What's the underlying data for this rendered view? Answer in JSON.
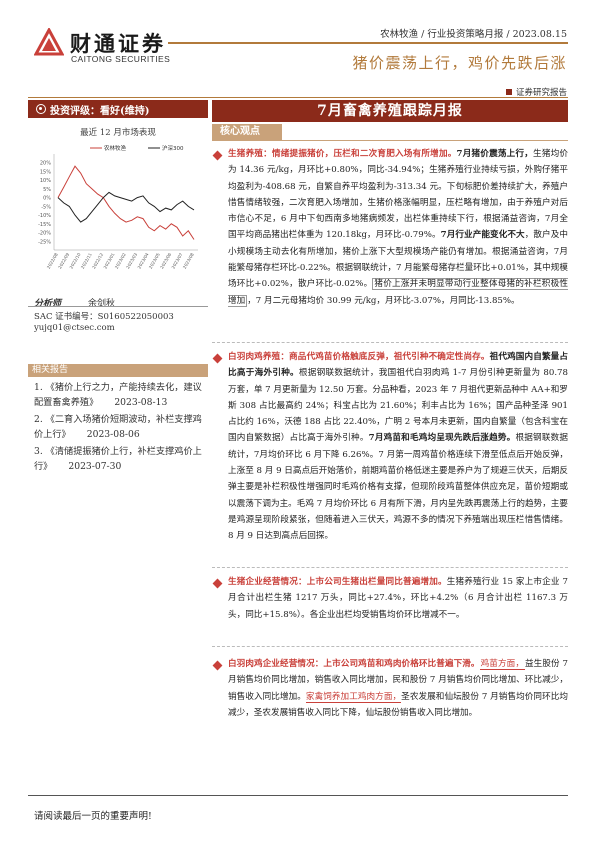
{
  "header": {
    "company_cn": "财通证券",
    "company_en": "CAITONG SECURITIES",
    "meta": "农林牧渔 / 行业投资策略月报 / 2023.08.15",
    "subtitle": "猪价震荡上行，鸡价先跌后涨",
    "report_tag": "证券研究报告"
  },
  "sidebar": {
    "rating": "投资评级：看好(维持)",
    "chart_caption": "最近 12 月市场表现",
    "analyst_label": "分析师",
    "analyst_name": "余剑秋",
    "sac": "SAC 证书编号：S0160522050003",
    "email": "yujq01@ctsec.com",
    "related_title": "相关报告",
    "related": [
      {
        "text": "1. 《猪价上行之力，产能持续去化，建议配置畜禽养殖》",
        "date": "2023-08-13"
      },
      {
        "text": "2. 《二育入场猪价短期波动，补栏支撑鸡价上行》",
        "date": "2023-08-06"
      },
      {
        "text": "3. 《清储提振猪价上行，补栏支撑鸡价上行》",
        "date": "2023-07-30"
      }
    ]
  },
  "chart_data": {
    "type": "line",
    "title": "最近 12 月市场表现",
    "ylim": [
      -0.3,
      0.25
    ],
    "y_ticks": [
      "20%",
      "15%",
      "10%",
      "5%",
      "0%",
      "-5%",
      "-10%",
      "-15%",
      "-20%",
      "-25%"
    ],
    "x_ticks": [
      "2022/08",
      "2022/09",
      "2022/10",
      "2022/11",
      "2022/12",
      "2023/01",
      "2023/02",
      "2023/03",
      "2023/04",
      "2023/05",
      "2023/06",
      "2023/07",
      "2023/08"
    ],
    "series": [
      {
        "name": "农林牧渔",
        "color": "#c9403a",
        "values": [
          0.0,
          0.06,
          0.12,
          0.18,
          0.14,
          0.08,
          0.05,
          0.02,
          0.0,
          -0.05,
          -0.09,
          -0.12,
          -0.14,
          -0.13,
          -0.11,
          -0.12,
          -0.17,
          -0.19,
          -0.16,
          -0.18,
          -0.15,
          -0.17,
          -0.22,
          -0.19,
          -0.24
        ]
      },
      {
        "name": "沪深300",
        "color": "#222222",
        "values": [
          0.0,
          -0.03,
          -0.05,
          -0.1,
          -0.14,
          -0.12,
          -0.08,
          -0.04,
          0.0,
          0.03,
          0.01,
          0.0,
          -0.01,
          -0.02,
          0.0,
          0.01,
          -0.03,
          -0.05,
          -0.08,
          -0.06,
          -0.07,
          -0.04,
          -0.02,
          -0.05,
          -0.07
        ]
      }
    ]
  },
  "main": {
    "title": "7月畜禽养殖跟踪月报",
    "core_label": "核心观点",
    "p1_head": "生猪养殖：情绪提振猪价，压栏和二次育肥入场有所增加。",
    "p1_lead": "7月猪价震荡上行，",
    "p1_a": "生猪均价为 14.36 元/kg，月环比+0.80%，同比-34.94%；生猪养殖行业持续亏损，外购仔猪平均盈利为-408.68 元，自繁自养平均盈利为-313.34 元。下旬标肥价差持续扩大，养殖户惜售情绪较强，二次育肥入场增加，生猪价格涨幅明显，压栏略有增加，由于养殖户对后市信心不足，6 月中下旬西南多地猪病频发，出栏体重持续下行，根据涌益咨询，7月全国平均商品猪出栏体重为 120.18kg，月环比-0.79%。",
    "p1_b": "7月行业产能变化不大",
    "p1_c": "，散户及中小规模场主动去化有所增加，猪价上涨下大型规模场产能仍有增加。根据涌益咨询，7月能繁母猪存栏环比-0.22%。根据钢联统计，7 月能繁母猪存栏量环比+0.01%，其中规模场环比+0.02%，散户环比-0.02%。",
    "p1_box": "猪价上涨并未明显带动行业整体母猪的补栏积极性增加",
    "p1_d": "，7 月二元母猪均价 30.99 元/kg，月环比-3.07%，月同比-13.85%。",
    "p2_head": "白羽肉鸡养殖：商品代鸡苗价格触底反弹，祖代引种不确定性尚存。",
    "p2_lead": "祖代鸡国内自繁量占比高于海外引种。",
    "p2_a": "根据钢联数据统计，我国祖代白羽肉鸡 1-7 月份引种更新量为 80.78 万套，单 7 月更新量为 12.50 万套。分品种看，2023 年 7 月祖代更新品种中 AA+和罗斯 308 占比最高约 24%；科宝占比为 21.60%；利丰占比为 16%；国产品种圣泽 901 占比约 16%，沃德 188 占比 22.40%，广明 2 号本月未更新，国内自繁量（包含科宝在国内自繁数据）占比高于海外引种。",
    "p2_b": "7月鸡苗和毛鸡均呈现先跌后涨趋势。",
    "p2_c": "根据钢联数据统计，7月均价环比 6 月下降 6.26%。7 月第一周鸡苗价格连续下滑至低点后开始反弹，上涨至 8 月 9 日高点后开始落价，前期鸡苗价格低迷主要是养户为了规避三伏天，后期反弹主要是补栏积极性增强同时毛鸡价格有支撑，但现阶段鸡苗整体供应充足，苗价短期或以震荡下调为主。毛鸡 7 月均价环比 6 月有所下滑，月内呈先跌再震荡上行的趋势，主要是鸡源呈现阶段紧张，但随着进入三伏天，鸡源不多的情况下养殖端出现压栏惜售情绪。8 月 9 日达到高点后回探。",
    "p3_head": "生猪企业经营情况：",
    "p3_b": "上市公司生猪出栏量同比普遍增加。",
    "p3_a": "生猪养殖行业 15 家上市企业 7 月合计出栏生猪 1217 万头，同比+27.4%，环比+4.2%（6 月合计出栏 1167.3 万头，同比+15.8%）。各企业出栏均受销售均价环比增减不一。",
    "p4_head": "白羽肉鸡企业经营情况：上市公司鸡苗和鸡肉价格环比普遍下滑。",
    "p4_u1": "鸡苗方面，",
    "p4_a": "益生股份 7 月销售均价同比增加，销售收入同比增加，民和股份 7 月销售均价同比增加、环比减少，销售收入同比增加。",
    "p4_u2": "家禽饲养加工鸡肉方面，",
    "p4_b": "圣农发展和仙坛股份 7 月销售均价同环比均减少，圣农发展销售收入同比下降，仙坛股份销售收入同比增加。"
  },
  "footer": {
    "text": "请阅读最后一页的重要声明!"
  }
}
